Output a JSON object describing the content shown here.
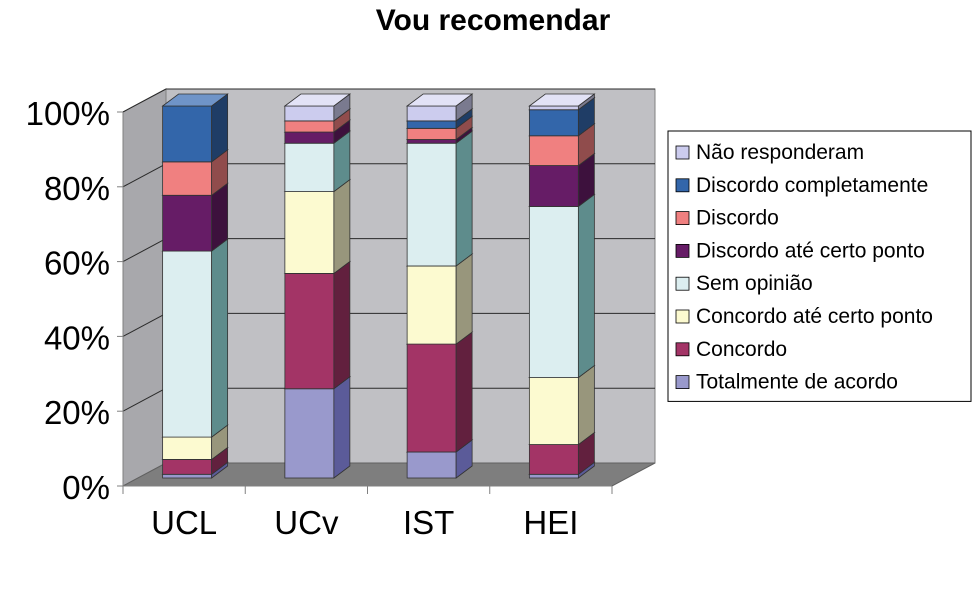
{
  "chart_data": {
    "type": "bar",
    "stacked": true,
    "three_d": true,
    "title": "Vou recomendar",
    "categories": [
      "UCL",
      "UCv",
      "IST",
      "HEI"
    ],
    "y_ticks": [
      "0%",
      "20%",
      "40%",
      "60%",
      "80%",
      "100%"
    ],
    "ylim": [
      0,
      100
    ],
    "grid": true,
    "legend_position": "right",
    "series": [
      {
        "name": "Totalmente de acordo",
        "values": [
          1,
          24,
          7,
          1
        ],
        "color": "#9999CC",
        "side_color": "#5B5B99",
        "top_color": "#BDBDE0"
      },
      {
        "name": "Concordo",
        "values": [
          4,
          31,
          29,
          8
        ],
        "color": "#A33466",
        "side_color": "#62203E",
        "top_color": "#C56A92"
      },
      {
        "name": "Concordo até certo ponto",
        "values": [
          6,
          22,
          21,
          18
        ],
        "color": "#FCFAD0",
        "side_color": "#98967C",
        "top_color": "#FFFFE8"
      },
      {
        "name": "Sem opinião",
        "values": [
          50,
          13,
          33,
          46
        ],
        "color": "#DCEEF0",
        "side_color": "#5E8C8C",
        "top_color": "#F0FAFB"
      },
      {
        "name": "Discordo até certo ponto",
        "values": [
          15,
          3,
          1,
          11
        ],
        "color": "#661C66",
        "side_color": "#3D113D",
        "top_color": "#8E4E8E"
      },
      {
        "name": "Discordo",
        "values": [
          9,
          3,
          3,
          8
        ],
        "color": "#F08080",
        "side_color": "#904C4C",
        "top_color": "#F6AAAA"
      },
      {
        "name": "Discordo completamente",
        "values": [
          15,
          0,
          2,
          7
        ],
        "color": "#3366AA",
        "side_color": "#1F3D66",
        "top_color": "#6F94C8"
      },
      {
        "name": "Não responderam",
        "values": [
          0,
          4,
          4,
          1
        ],
        "color": "#CCCCEE",
        "side_color": "#7A7A8F",
        "top_color": "#E2E2F6"
      }
    ]
  }
}
